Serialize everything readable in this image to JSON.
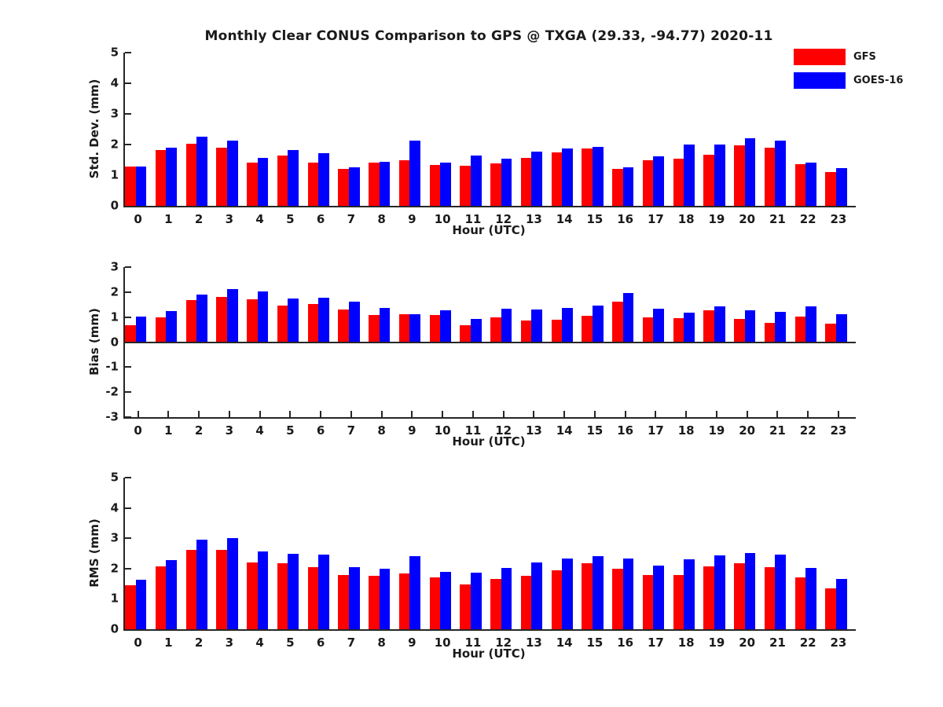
{
  "title": "Monthly Clear CONUS Comparison to GPS @ TXGA (29.33, -94.77) 2020-11",
  "colors": {
    "gfs_red": "#ff0000",
    "goes_blue": "#0000ff",
    "axis": "#262626",
    "text": "#1a1a1a"
  },
  "legend": {
    "position": "upper-right",
    "items": [
      {
        "label": "GFS",
        "color": "#ff0000"
      },
      {
        "label": "GOES-16",
        "color": "#0000ff"
      }
    ]
  },
  "chart_data": [
    {
      "type": "bar",
      "ylabel": "Std. Dev. (mm)",
      "xlabel": "Hour (UTC)",
      "ylim": [
        0,
        5
      ],
      "yticks": [
        0,
        1,
        2,
        3,
        4,
        5
      ],
      "grid": false,
      "categories": [
        "0",
        "1",
        "2",
        "3",
        "4",
        "5",
        "6",
        "7",
        "8",
        "9",
        "10",
        "11",
        "12",
        "13",
        "14",
        "15",
        "16",
        "17",
        "18",
        "19",
        "20",
        "21",
        "22",
        "23"
      ],
      "series": [
        {
          "name": "GFS",
          "color": "#ff0000",
          "values": [
            1.27,
            1.83,
            2.03,
            1.9,
            1.4,
            1.64,
            1.4,
            1.2,
            1.4,
            1.5,
            1.34,
            1.31,
            1.38,
            1.56,
            1.75,
            1.86,
            1.2,
            1.5,
            1.53,
            1.67,
            1.98,
            1.91,
            1.36,
            1.1
          ]
        },
        {
          "name": "GOES-16",
          "color": "#0000ff",
          "values": [
            1.28,
            1.9,
            2.26,
            2.13,
            1.57,
            1.82,
            1.72,
            1.25,
            1.44,
            2.12,
            1.41,
            1.63,
            1.54,
            1.78,
            1.86,
            1.92,
            1.26,
            1.62,
            2.0,
            2.0,
            2.2,
            2.13,
            1.4,
            1.22
          ]
        }
      ]
    },
    {
      "type": "bar",
      "ylabel": "Bias (mm)",
      "xlabel": "Hour (UTC)",
      "ylim": [
        -3,
        3
      ],
      "yticks": [
        3,
        2,
        1,
        0,
        -1,
        -2,
        -3
      ],
      "grid": false,
      "categories": [
        "0",
        "1",
        "2",
        "3",
        "4",
        "5",
        "6",
        "7",
        "8",
        "9",
        "10",
        "11",
        "12",
        "13",
        "14",
        "15",
        "16",
        "17",
        "18",
        "19",
        "20",
        "21",
        "22",
        "23"
      ],
      "series": [
        {
          "name": "GFS",
          "color": "#ff0000",
          "values": [
            0.68,
            1.0,
            1.67,
            1.82,
            1.7,
            1.47,
            1.52,
            1.31,
            1.07,
            1.12,
            1.07,
            0.67,
            1.0,
            0.85,
            0.9,
            1.04,
            1.62,
            0.99,
            0.95,
            1.26,
            0.92,
            0.78,
            1.01,
            0.74
          ]
        },
        {
          "name": "GOES-16",
          "color": "#0000ff",
          "values": [
            1.02,
            1.25,
            1.89,
            2.12,
            2.03,
            1.74,
            1.77,
            1.61,
            1.38,
            1.11,
            1.28,
            0.93,
            1.34,
            1.29,
            1.38,
            1.47,
            1.97,
            1.32,
            1.17,
            1.42,
            1.27,
            1.2,
            1.42,
            1.1
          ]
        }
      ]
    },
    {
      "type": "bar",
      "ylabel": "RMS (mm)",
      "xlabel": "Hour (UTC)",
      "ylim": [
        0,
        5
      ],
      "yticks": [
        0,
        1,
        2,
        3,
        4,
        5
      ],
      "grid": false,
      "categories": [
        "0",
        "1",
        "2",
        "3",
        "4",
        "5",
        "6",
        "7",
        "8",
        "9",
        "10",
        "11",
        "12",
        "13",
        "14",
        "15",
        "16",
        "17",
        "18",
        "19",
        "20",
        "21",
        "22",
        "23"
      ],
      "series": [
        {
          "name": "GFS",
          "color": "#ff0000",
          "values": [
            1.45,
            2.08,
            2.62,
            2.62,
            2.2,
            2.18,
            2.05,
            1.78,
            1.75,
            1.85,
            1.7,
            1.48,
            1.67,
            1.76,
            1.95,
            2.17,
            2.0,
            1.78,
            1.8,
            2.08,
            2.18,
            2.05,
            1.7,
            1.35
          ]
        },
        {
          "name": "GOES-16",
          "color": "#0000ff",
          "values": [
            1.62,
            2.27,
            2.95,
            3.0,
            2.57,
            2.5,
            2.47,
            2.05,
            2.0,
            2.4,
            1.9,
            1.87,
            2.03,
            2.2,
            2.32,
            2.4,
            2.33,
            2.1,
            2.3,
            2.43,
            2.52,
            2.47,
            2.02,
            1.65
          ]
        }
      ]
    }
  ]
}
